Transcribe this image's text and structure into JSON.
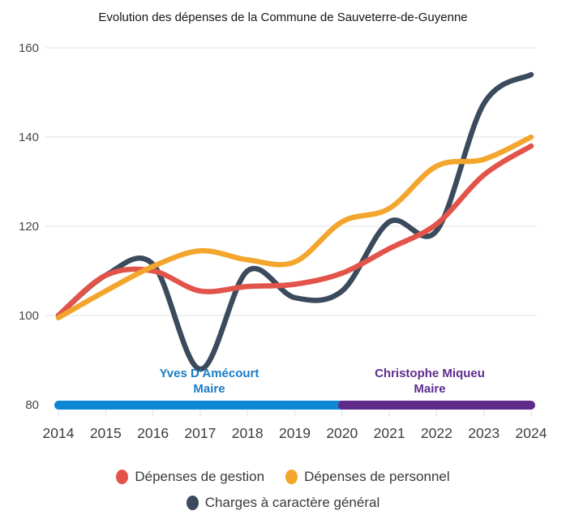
{
  "chart_data": {
    "type": "line",
    "title": "Evolution des dépenses de la Commune de Sauveterre-de-Guyenne",
    "categories": [
      "2014",
      "2015",
      "2016",
      "2017",
      "2018",
      "2019",
      "2020",
      "2021",
      "2022",
      "2023",
      "2024"
    ],
    "series": [
      {
        "name": "Dépenses de gestion",
        "color": "#e2544a",
        "values": [
          100,
          109,
          110,
          105.5,
          106.5,
          107,
          109.5,
          115,
          120.5,
          131.5,
          138
        ]
      },
      {
        "name": "Dépenses de personnel",
        "color": "#f3a62e",
        "values": [
          99.5,
          105.5,
          111,
          114.5,
          112.5,
          112,
          121,
          124,
          133.5,
          135,
          140
        ]
      },
      {
        "name": "Charges à caractère général",
        "color": "#3b4a5c",
        "values": [
          100,
          109,
          111.5,
          88,
          110,
          104,
          105.5,
          121,
          119,
          147.5,
          154
        ]
      }
    ],
    "y_ticks": [
      160,
      140,
      120,
      100,
      80
    ],
    "ylim": [
      80,
      160
    ],
    "grid": "horizontal",
    "legend_position": "bottom"
  },
  "mayors": [
    {
      "name": "Yves D'Amécourt",
      "role": "Maire",
      "start": 2014,
      "end": 2020,
      "bar_color": "#0e87d6",
      "text_color": "#1a7cc5"
    },
    {
      "name": "Christophe Miqueu",
      "role": "Maire",
      "start": 2020,
      "end": 2024,
      "bar_color": "#5e2b8a",
      "text_color": "#5e2d8e"
    }
  ]
}
